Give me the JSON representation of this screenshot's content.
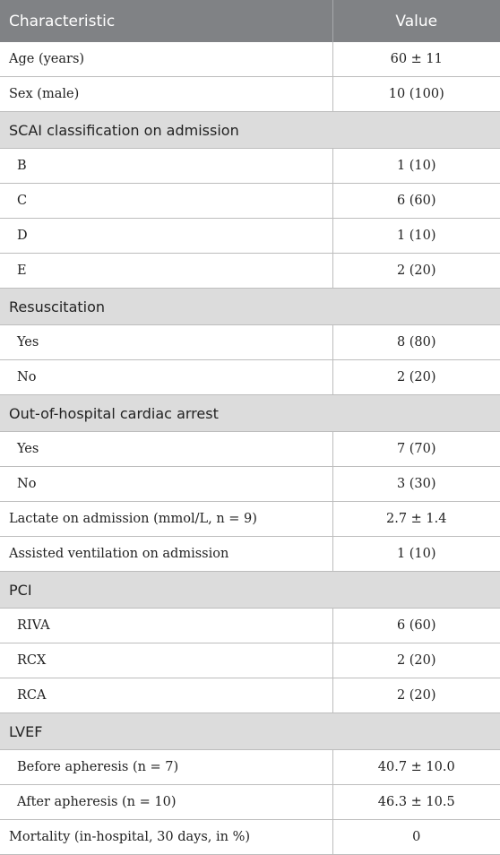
{
  "table": {
    "headers": [
      "Characteristic",
      "Value"
    ],
    "rows": [
      {
        "type": "row",
        "label": "Age (years)",
        "value": "60 ± 11",
        "indent": false
      },
      {
        "type": "row",
        "label": "Sex (male)",
        "value": "10 (100)",
        "indent": false
      },
      {
        "type": "section",
        "label": "SCAI classification on admission"
      },
      {
        "type": "row",
        "label": "B",
        "value": "1 (10)",
        "indent": true
      },
      {
        "type": "row",
        "label": "C",
        "value": "6 (60)",
        "indent": true
      },
      {
        "type": "row",
        "label": "D",
        "value": "1 (10)",
        "indent": true
      },
      {
        "type": "row",
        "label": "E",
        "value": "2 (20)",
        "indent": true
      },
      {
        "type": "section",
        "label": "Resuscitation"
      },
      {
        "type": "row",
        "label": "Yes",
        "value": "8 (80)",
        "indent": true
      },
      {
        "type": "row",
        "label": "No",
        "value": "2 (20)",
        "indent": true
      },
      {
        "type": "section",
        "label": "Out-of-hospital cardiac arrest"
      },
      {
        "type": "row",
        "label": "Yes",
        "value": "7 (70)",
        "indent": true
      },
      {
        "type": "row",
        "label": "No",
        "value": "3 (30)",
        "indent": true
      },
      {
        "type": "row",
        "label": "Lactate on admission (mmol/L, n = 9)",
        "value": "2.7 ± 1.4",
        "indent": false
      },
      {
        "type": "row",
        "label": "Assisted ventilation on admission",
        "value": "1 (10)",
        "indent": false
      },
      {
        "type": "section",
        "label": "PCI"
      },
      {
        "type": "row",
        "label": "RIVA",
        "value": "6 (60)",
        "indent": true
      },
      {
        "type": "row",
        "label": "RCX",
        "value": "2 (20)",
        "indent": true
      },
      {
        "type": "row",
        "label": "RCA",
        "value": "2 (20)",
        "indent": true
      },
      {
        "type": "section",
        "label": "LVEF"
      },
      {
        "type": "row",
        "label": "Before apheresis (n = 7)",
        "value": "40.7 ± 10.0",
        "indent": true
      },
      {
        "type": "row",
        "label": "After apheresis (n = 10)",
        "value": "46.3 ± 10.5",
        "indent": true
      },
      {
        "type": "row",
        "label": "Mortality (in-hospital, 30 days, in %)",
        "value": "0",
        "indent": false
      }
    ]
  }
}
